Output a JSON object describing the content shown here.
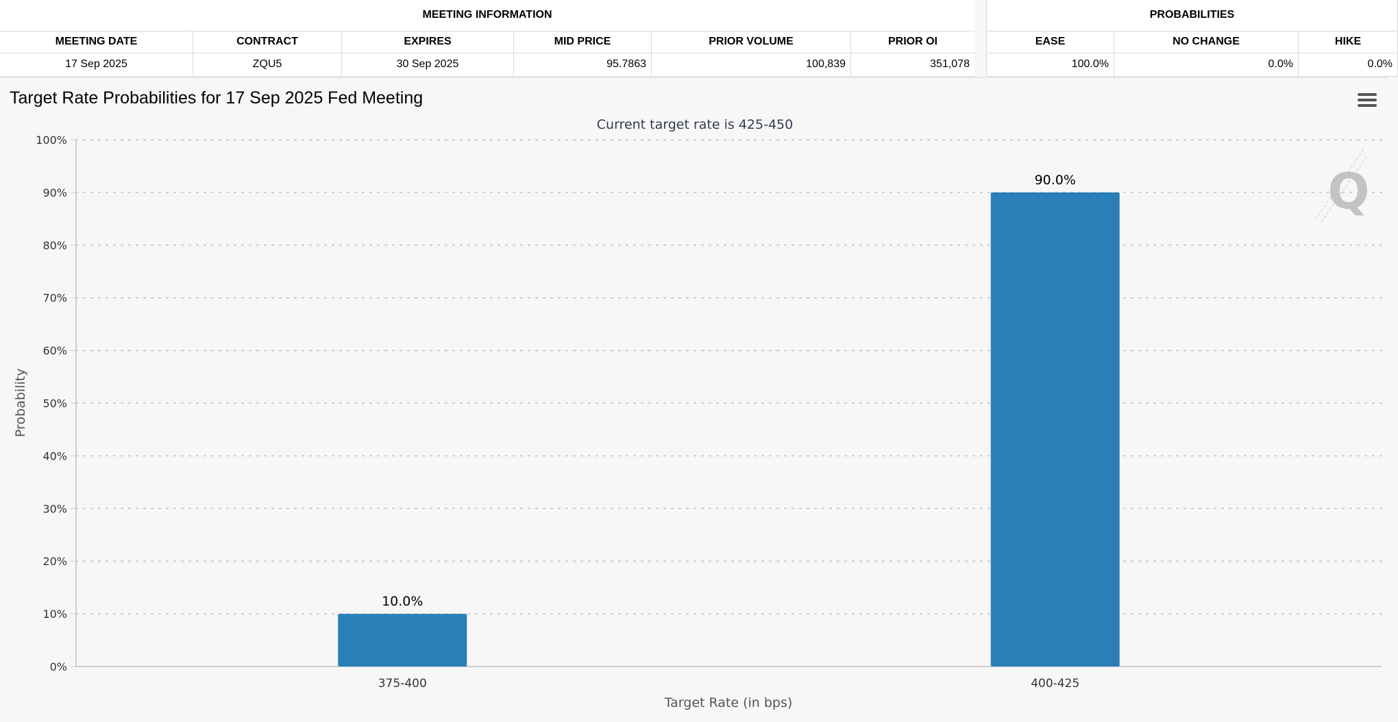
{
  "meeting_table": {
    "group_title": "MEETING INFORMATION",
    "headers": [
      "MEETING DATE",
      "CONTRACT",
      "EXPIRES",
      "MID PRICE",
      "PRIOR VOLUME",
      "PRIOR OI"
    ],
    "row": [
      "17 Sep 2025",
      "ZQU5",
      "30 Sep 2025",
      "95.7863",
      "100,839",
      "351,078"
    ]
  },
  "probabilities_table": {
    "group_title": "PROBABILITIES",
    "headers": [
      "EASE",
      "NO CHANGE",
      "HIKE"
    ],
    "row": [
      "100.0%",
      "0.0%",
      "0.0%"
    ]
  },
  "chart_data": {
    "type": "bar",
    "title": "Target Rate Probabilities for 17 Sep 2025 Fed Meeting",
    "subtitle": "Current target rate is 425-450",
    "xlabel": "Target Rate (in bps)",
    "ylabel": "Probability",
    "categories": [
      "375-400",
      "400-425"
    ],
    "values": [
      10.0,
      90.0
    ],
    "data_labels": [
      "10.0%",
      "90.0%"
    ],
    "ylim": [
      0,
      100
    ],
    "yticks": [
      0,
      10,
      20,
      30,
      40,
      50,
      60,
      70,
      80,
      90,
      100
    ],
    "ytick_labels": [
      "0%",
      "10%",
      "20%",
      "30%",
      "40%",
      "50%",
      "60%",
      "70%",
      "80%",
      "90%",
      "100%"
    ],
    "grid": true,
    "bar_color": "#2a7fb8"
  },
  "icons": {
    "menu": "hamburger-menu-icon",
    "watermark": "q-logo-watermark-icon"
  }
}
